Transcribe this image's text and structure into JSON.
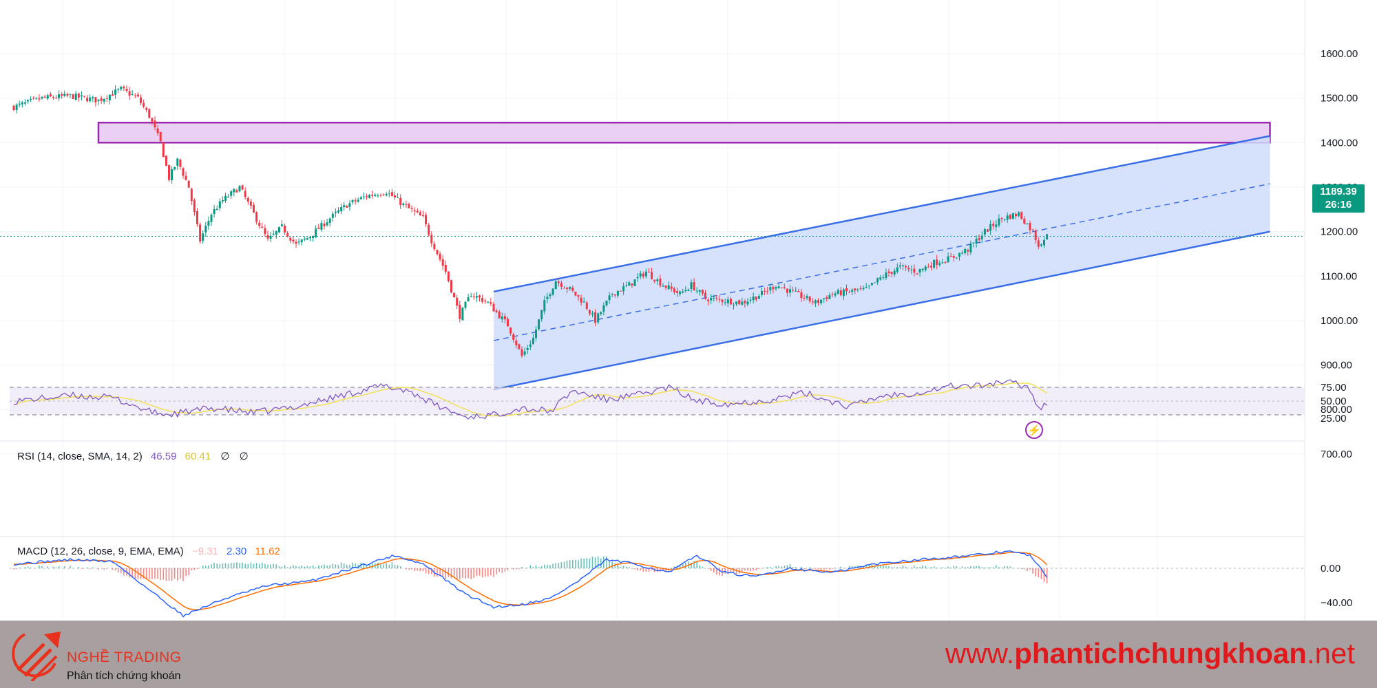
{
  "colors": {
    "up": "#089981",
    "down": "#f23645",
    "channel": "#3a6ee8",
    "channel_fill": "#cfdcfb",
    "zone_stroke": "#9c27b0",
    "zone_fill": "#ead0f2",
    "rsi_line": "#7e57c2",
    "rsi_ma": "#f1e05a",
    "macd_line": "#2962ff",
    "signal_line": "#ff6d00",
    "footer_bg": "#a8a0a0",
    "brand_red": "#e0191c"
  },
  "price_axis": {
    "ticks": [
      "1600.00",
      "1500.00",
      "1400.00",
      "1300.00",
      "1200.00",
      "1100.00",
      "1000.00",
      "900.00",
      "800.00",
      "700.00"
    ],
    "current_price": "1189.39",
    "countdown": "26:16",
    "alert_icon": "lightning-bolt-icon"
  },
  "rsi": {
    "label": "RSI (14, close, SMA, 14, 2)",
    "value": "46.59",
    "ma_value": "60.41",
    "extra1": "∅",
    "extra2": "∅",
    "ticks": [
      "75.00",
      "50.00",
      "25.00"
    ]
  },
  "macd": {
    "label": "MACD (12, 26, close, 9, EMA, EMA)",
    "hist": "−9.31",
    "macd": "2.30",
    "signal": "11.62",
    "ticks": [
      "0.00",
      "−40.00"
    ]
  },
  "chart_data": {
    "type": "candlestick",
    "ylim": [
      650,
      1630
    ],
    "grid": true,
    "price_path": [
      [
        0,
        1480
      ],
      [
        10,
        1500
      ],
      [
        20,
        1505
      ],
      [
        30,
        1495
      ],
      [
        38,
        1520
      ],
      [
        44,
        1500
      ],
      [
        48,
        1460
      ],
      [
        52,
        1400
      ],
      [
        55,
        1320
      ],
      [
        58,
        1360
      ],
      [
        62,
        1300
      ],
      [
        66,
        1180
      ],
      [
        70,
        1240
      ],
      [
        74,
        1270
      ],
      [
        80,
        1300
      ],
      [
        85,
        1240
      ],
      [
        90,
        1180
      ],
      [
        95,
        1210
      ],
      [
        100,
        1170
      ],
      [
        105,
        1190
      ],
      [
        112,
        1230
      ],
      [
        118,
        1260
      ],
      [
        125,
        1280
      ],
      [
        132,
        1290
      ],
      [
        138,
        1260
      ],
      [
        145,
        1230
      ],
      [
        148,
        1180
      ],
      [
        153,
        1110
      ],
      [
        158,
        1010
      ],
      [
        162,
        1060
      ],
      [
        168,
        1040
      ],
      [
        175,
        990
      ],
      [
        180,
        920
      ],
      [
        184,
        960
      ],
      [
        188,
        1040
      ],
      [
        192,
        1090
      ],
      [
        197,
        1070
      ],
      [
        202,
        1040
      ],
      [
        206,
        1000
      ],
      [
        212,
        1060
      ],
      [
        218,
        1080
      ],
      [
        224,
        1110
      ],
      [
        230,
        1080
      ],
      [
        236,
        1060
      ],
      [
        240,
        1080
      ],
      [
        245,
        1050
      ],
      [
        252,
        1045
      ],
      [
        258,
        1040
      ],
      [
        265,
        1060
      ],
      [
        270,
        1080
      ],
      [
        277,
        1060
      ],
      [
        284,
        1040
      ],
      [
        290,
        1060
      ],
      [
        296,
        1065
      ],
      [
        302,
        1070
      ],
      [
        308,
        1100
      ],
      [
        314,
        1120
      ],
      [
        320,
        1110
      ],
      [
        326,
        1130
      ],
      [
        332,
        1140
      ],
      [
        338,
        1160
      ],
      [
        344,
        1200
      ],
      [
        350,
        1230
      ],
      [
        356,
        1240
      ],
      [
        361,
        1200
      ],
      [
        363,
        1170
      ],
      [
        366,
        1190
      ]
    ],
    "n_candles": 367,
    "zones": [
      {
        "x": [
          30,
          445
        ],
        "y": [
          1400,
          1445
        ],
        "label": ""
      }
    ],
    "channel": {
      "x": [
        170,
        445
      ],
      "upper": [
        1065,
        1415
      ],
      "lower": [
        845,
        1200
      ]
    },
    "rsi_path": [
      [
        0,
        50
      ],
      [
        20,
        58
      ],
      [
        35,
        55
      ],
      [
        48,
        35
      ],
      [
        55,
        30
      ],
      [
        70,
        40
      ],
      [
        85,
        33
      ],
      [
        100,
        42
      ],
      [
        118,
        60
      ],
      [
        130,
        72
      ],
      [
        140,
        65
      ],
      [
        150,
        43
      ],
      [
        160,
        27
      ],
      [
        170,
        30
      ],
      [
        180,
        40
      ],
      [
        190,
        35
      ],
      [
        198,
        65
      ],
      [
        210,
        52
      ],
      [
        220,
        58
      ],
      [
        232,
        70
      ],
      [
        242,
        50
      ],
      [
        254,
        46
      ],
      [
        268,
        52
      ],
      [
        280,
        62
      ],
      [
        296,
        42
      ],
      [
        308,
        58
      ],
      [
        320,
        62
      ],
      [
        332,
        72
      ],
      [
        342,
        72
      ],
      [
        350,
        78
      ],
      [
        356,
        75
      ],
      [
        360,
        68
      ],
      [
        363,
        40
      ],
      [
        366,
        45
      ]
    ],
    "macd_path": [
      [
        0,
        5
      ],
      [
        20,
        10
      ],
      [
        35,
        8
      ],
      [
        48,
        -25
      ],
      [
        60,
        -55
      ],
      [
        75,
        -35
      ],
      [
        90,
        -20
      ],
      [
        105,
        -15
      ],
      [
        120,
        0
      ],
      [
        135,
        15
      ],
      [
        145,
        5
      ],
      [
        160,
        -30
      ],
      [
        170,
        -45
      ],
      [
        180,
        -42
      ],
      [
        190,
        -35
      ],
      [
        200,
        -15
      ],
      [
        210,
        10
      ],
      [
        220,
        5
      ],
      [
        232,
        -5
      ],
      [
        242,
        15
      ],
      [
        252,
        -5
      ],
      [
        262,
        -10
      ],
      [
        275,
        0
      ],
      [
        290,
        -5
      ],
      [
        305,
        5
      ],
      [
        320,
        10
      ],
      [
        340,
        15
      ],
      [
        352,
        20
      ],
      [
        360,
        15
      ],
      [
        366,
        -10
      ]
    ]
  },
  "footer": {
    "brand_name": "NGHỀ TRADING",
    "brand_tagline": "Phân tích chứng khoán",
    "website_prefix": "www.",
    "website_main": "phantichchungkhoan",
    "website_suffix": ".net"
  }
}
